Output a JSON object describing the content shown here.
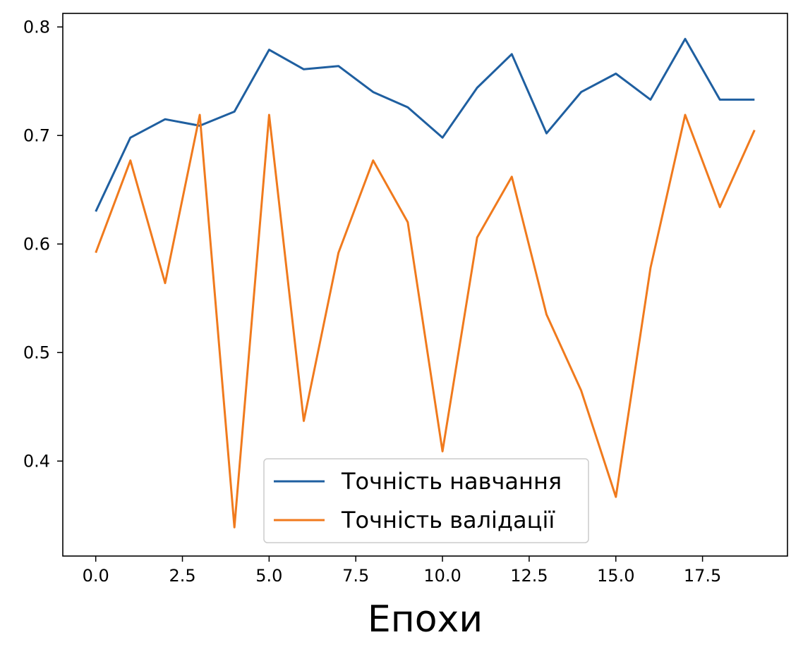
{
  "chart_data": {
    "type": "line",
    "title": "",
    "xlabel": "Епохи",
    "ylabel": "",
    "x": [
      0,
      1,
      2,
      3,
      4,
      5,
      6,
      7,
      8,
      9,
      10,
      11,
      12,
      13,
      14,
      15,
      16,
      17,
      18,
      19
    ],
    "xlim": [
      -0.95,
      19.95
    ],
    "ylim": [
      0.3125,
      0.8125
    ],
    "xticks": [
      0.0,
      2.5,
      5.0,
      7.5,
      10.0,
      12.5,
      15.0,
      17.5
    ],
    "xtick_labels": [
      "0.0",
      "2.5",
      "5.0",
      "7.5",
      "10.0",
      "12.5",
      "15.0",
      "17.5"
    ],
    "yticks": [
      0.4,
      0.5,
      0.6,
      0.7,
      0.8
    ],
    "ytick_labels": [
      "0.4",
      "0.5",
      "0.6",
      "0.7",
      "0.8"
    ],
    "grid": false,
    "legend_position": "lower-center",
    "series": [
      {
        "name": "Точність навчання",
        "color": "#1f5fa0",
        "values": [
          0.63,
          0.698,
          0.715,
          0.709,
          0.722,
          0.779,
          0.761,
          0.764,
          0.74,
          0.726,
          0.698,
          0.744,
          0.775,
          0.702,
          0.74,
          0.757,
          0.733,
          0.789,
          0.733,
          0.733
        ]
      },
      {
        "name": "Точність валідації",
        "color": "#f07a1d",
        "values": [
          0.592,
          0.677,
          0.564,
          0.719,
          0.339,
          0.719,
          0.437,
          0.592,
          0.677,
          0.62,
          0.409,
          0.606,
          0.662,
          0.535,
          0.465,
          0.367,
          0.578,
          0.719,
          0.634,
          0.705
        ]
      }
    ]
  }
}
